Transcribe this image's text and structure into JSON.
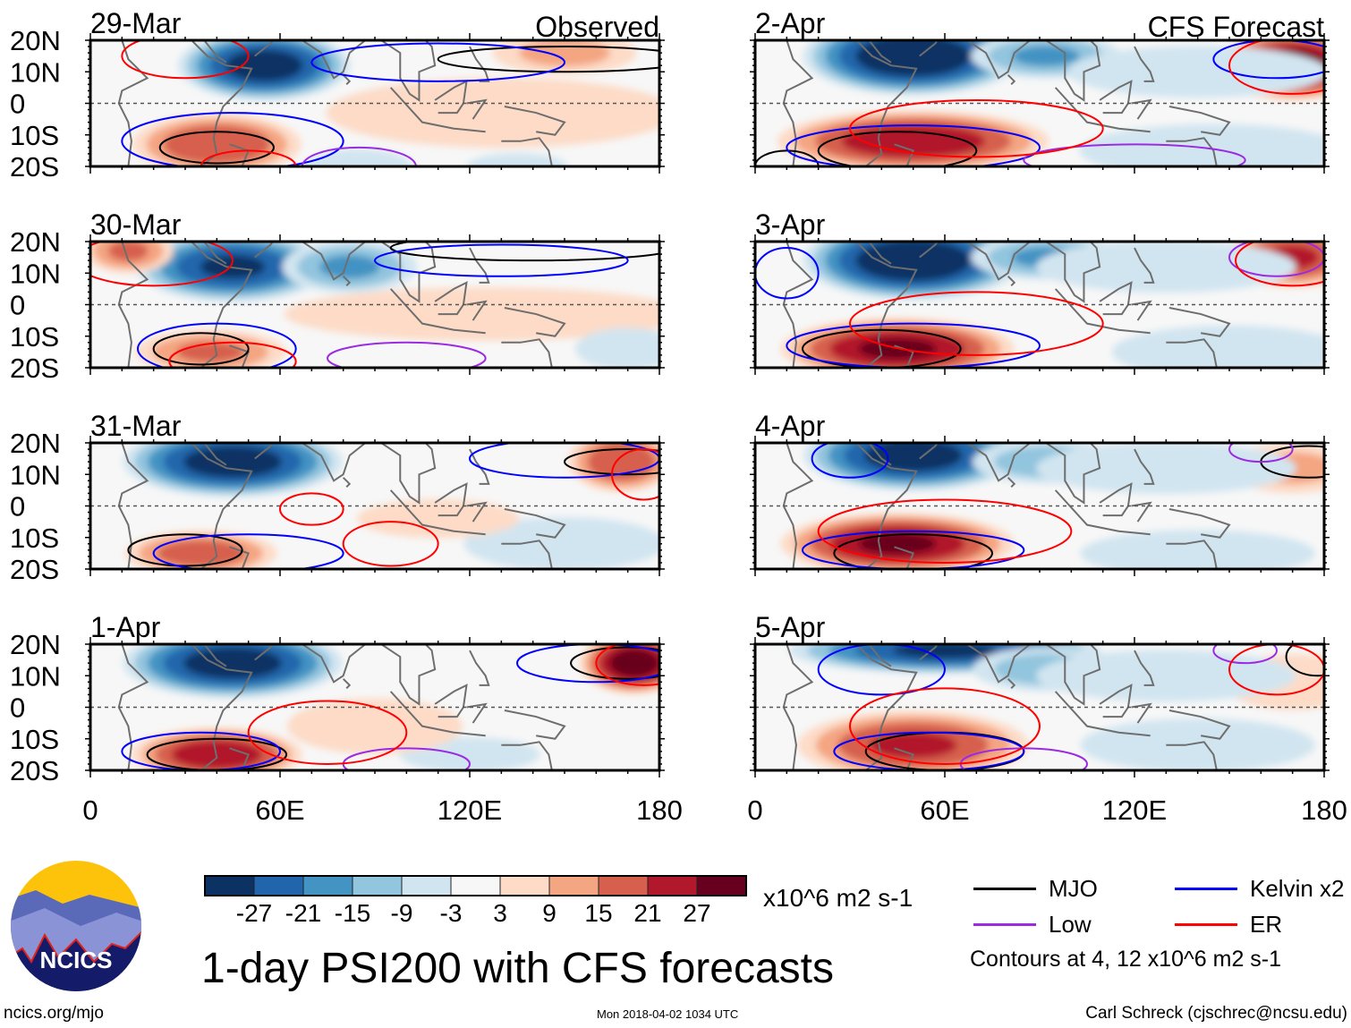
{
  "chart_data": {
    "type": "heatmap",
    "title": "1-day PSI200 with CFS forecasts",
    "units": "x10^6 m2 s-1",
    "xlim": [
      0,
      180
    ],
    "ylim": [
      -20,
      20
    ],
    "x_ticks": [
      "0",
      "60E",
      "120E",
      "180"
    ],
    "x_tick_values": [
      0,
      60,
      120,
      180
    ],
    "y_ticks": [
      "20N",
      "10N",
      "0",
      "10S",
      "20S"
    ],
    "y_tick_values": [
      20,
      10,
      0,
      -10,
      -20
    ],
    "column_labels": [
      "Observed",
      "CFS Forecast"
    ],
    "colorbar": {
      "labels": [
        "-27",
        "-21",
        "-15",
        "-9",
        "-3",
        "3",
        "9",
        "15",
        "21",
        "27"
      ],
      "colors": [
        "#0b3263",
        "#2166ac",
        "#4393c3",
        "#92c5de",
        "#d1e5f0",
        "#f7f7f7",
        "#fddbc7",
        "#f4a582",
        "#d6604d",
        "#b2182b",
        "#67001f"
      ]
    },
    "legend": [
      {
        "label": "MJO",
        "color": "#000000"
      },
      {
        "label": "Kelvin x2",
        "color": "#0000ff"
      },
      {
        "label": "Low",
        "color": "#9a2be2"
      },
      {
        "label": "ER",
        "color": "#ff0000"
      }
    ],
    "contour_note": "Contours at 4, 12 x10^6 m2 s-1",
    "panels": [
      {
        "date": "29-Mar",
        "column": 0,
        "row": 0,
        "anomalies": [
          [
            55,
            12,
            -30,
            22,
            9
          ],
          [
            40,
            -13,
            20,
            22,
            8
          ],
          [
            130,
            -3,
            8,
            50,
            10
          ],
          [
            150,
            16,
            10,
            20,
            6
          ],
          [
            85,
            -20,
            -8,
            15,
            5
          ],
          [
            135,
            -20,
            -6,
            15,
            4
          ]
        ],
        "contours": [
          [
            "MJO",
            40,
            -14,
            18,
            5
          ],
          [
            "MJO",
            150,
            14,
            40,
            4
          ],
          [
            "Kelvin",
            45,
            -12,
            35,
            9
          ],
          [
            "Kelvin",
            110,
            13,
            40,
            6
          ],
          [
            "Low",
            85,
            -20,
            18,
            6
          ],
          [
            "ER",
            30,
            15,
            20,
            7
          ],
          [
            "ER",
            50,
            -20,
            15,
            5
          ]
        ]
      },
      {
        "date": "30-Mar",
        "column": 0,
        "row": 1,
        "anomalies": [
          [
            45,
            12,
            -27,
            25,
            9
          ],
          [
            82,
            12,
            -15,
            18,
            7
          ],
          [
            12,
            17,
            15,
            12,
            6
          ],
          [
            38,
            -15,
            15,
            20,
            6
          ],
          [
            125,
            -3,
            6,
            60,
            8
          ],
          [
            170,
            -14,
            -8,
            15,
            6
          ]
        ],
        "contours": [
          [
            "MJO",
            35,
            -14,
            15,
            5
          ],
          [
            "MJO",
            140,
            18,
            45,
            4
          ],
          [
            "Kelvin",
            40,
            -14,
            25,
            8
          ],
          [
            "Kelvin",
            130,
            14,
            40,
            5
          ],
          [
            "Low",
            100,
            -17,
            25,
            5
          ],
          [
            "ER",
            45,
            -18,
            20,
            6
          ],
          [
            "ER",
            20,
            14,
            25,
            8
          ]
        ]
      },
      {
        "date": "31-Mar",
        "column": 0,
        "row": 2,
        "anomalies": [
          [
            45,
            14,
            -30,
            28,
            9
          ],
          [
            168,
            14,
            20,
            14,
            8
          ],
          [
            35,
            -15,
            18,
            20,
            6
          ],
          [
            150,
            -12,
            -6,
            30,
            8
          ],
          [
            110,
            -4,
            5,
            25,
            6
          ]
        ],
        "contours": [
          [
            "MJO",
            30,
            -14,
            18,
            5
          ],
          [
            "MJO",
            170,
            14,
            20,
            4
          ],
          [
            "Kelvin",
            50,
            -15,
            30,
            6
          ],
          [
            "Kelvin",
            150,
            15,
            30,
            6
          ],
          [
            "ER",
            70,
            -1,
            10,
            5
          ],
          [
            "ER",
            95,
            -12,
            15,
            7
          ],
          [
            "ER",
            175,
            10,
            10,
            8
          ]
        ]
      },
      {
        "date": "1-Apr",
        "column": 0,
        "row": 3,
        "anomalies": [
          [
            45,
            14,
            -30,
            28,
            9
          ],
          [
            172,
            14,
            30,
            14,
            8
          ],
          [
            40,
            -15,
            25,
            22,
            7
          ],
          [
            120,
            -15,
            -8,
            20,
            5
          ],
          [
            90,
            -6,
            8,
            25,
            8
          ]
        ],
        "contours": [
          [
            "MJO",
            40,
            -15,
            22,
            5
          ],
          [
            "MJO",
            170,
            14,
            18,
            5
          ],
          [
            "Kelvin",
            35,
            -14,
            25,
            6
          ],
          [
            "Kelvin",
            160,
            14,
            25,
            6
          ],
          [
            "Low",
            100,
            -18,
            20,
            5
          ],
          [
            "ER",
            75,
            -8,
            25,
            10
          ],
          [
            "ER",
            175,
            14,
            15,
            7
          ]
        ]
      },
      {
        "date": "2-Apr",
        "column": 1,
        "row": 0,
        "anomalies": [
          [
            50,
            15,
            -33,
            28,
            10
          ],
          [
            92,
            15,
            -15,
            20,
            6
          ],
          [
            170,
            12,
            30,
            20,
            9
          ],
          [
            50,
            -12,
            25,
            35,
            8
          ],
          [
            145,
            -15,
            -6,
            40,
            8
          ],
          [
            140,
            10,
            -5,
            40,
            8
          ]
        ],
        "contours": [
          [
            "MJO",
            45,
            -15,
            25,
            6
          ],
          [
            "MJO",
            10,
            -20,
            10,
            5
          ],
          [
            "Kelvin",
            50,
            -14,
            40,
            7
          ],
          [
            "Kelvin",
            165,
            14,
            20,
            6
          ],
          [
            "Low",
            120,
            -18,
            35,
            5
          ],
          [
            "ER",
            70,
            -8,
            40,
            9
          ],
          [
            "ER",
            170,
            12,
            20,
            9
          ]
        ]
      },
      {
        "date": "3-Apr",
        "column": 1,
        "row": 1,
        "anomalies": [
          [
            50,
            14,
            -33,
            28,
            10
          ],
          [
            92,
            15,
            -15,
            20,
            6
          ],
          [
            170,
            15,
            21,
            18,
            8
          ],
          [
            45,
            -14,
            27,
            30,
            8
          ],
          [
            150,
            -15,
            -6,
            35,
            8
          ],
          [
            130,
            12,
            -5,
            40,
            8
          ]
        ],
        "contours": [
          [
            "MJO",
            40,
            -14,
            25,
            6
          ],
          [
            "Kelvin",
            50,
            -13,
            40,
            7
          ],
          [
            "Kelvin",
            10,
            10,
            10,
            8
          ],
          [
            "Low",
            165,
            15,
            15,
            6
          ],
          [
            "ER",
            70,
            -6,
            40,
            10
          ],
          [
            "ER",
            170,
            14,
            18,
            8
          ]
        ]
      },
      {
        "date": "4-Apr",
        "column": 1,
        "row": 2,
        "anomalies": [
          [
            50,
            16,
            -30,
            28,
            9
          ],
          [
            92,
            14,
            -12,
            20,
            6
          ],
          [
            45,
            -12,
            27,
            30,
            8
          ],
          [
            170,
            12,
            10,
            18,
            7
          ],
          [
            140,
            -15,
            -6,
            35,
            7
          ],
          [
            130,
            12,
            -5,
            40,
            8
          ]
        ],
        "contours": [
          [
            "MJO",
            50,
            -15,
            25,
            6
          ],
          [
            "MJO",
            175,
            14,
            15,
            5
          ],
          [
            "Kelvin",
            50,
            -14,
            35,
            6
          ],
          [
            "Kelvin",
            30,
            15,
            12,
            6
          ],
          [
            "Low",
            160,
            18,
            10,
            4
          ],
          [
            "ER",
            60,
            -8,
            40,
            10
          ]
        ]
      },
      {
        "date": "5-Apr",
        "column": 1,
        "row": 3,
        "anomalies": [
          [
            60,
            18,
            -27,
            40,
            6
          ],
          [
            92,
            12,
            -12,
            20,
            6
          ],
          [
            50,
            -12,
            21,
            30,
            9
          ],
          [
            170,
            8,
            8,
            20,
            8
          ],
          [
            140,
            -12,
            -6,
            35,
            8
          ],
          [
            130,
            10,
            -5,
            40,
            8
          ]
        ],
        "contours": [
          [
            "MJO",
            60,
            -14,
            25,
            6
          ],
          [
            "MJO",
            178,
            16,
            10,
            6
          ],
          [
            "Kelvin",
            40,
            12,
            20,
            8
          ],
          [
            "Kelvin",
            55,
            -14,
            30,
            6
          ],
          [
            "Low",
            85,
            -18,
            20,
            5
          ],
          [
            "Low",
            155,
            18,
            10,
            4
          ],
          [
            "ER",
            60,
            -6,
            30,
            12
          ],
          [
            "ER",
            165,
            12,
            15,
            8
          ]
        ]
      }
    ]
  },
  "footer": {
    "logo_text": "NCICS",
    "website": "ncics.org/mjo",
    "timestamp": "Mon 2018-04-02 1034 UTC",
    "author": "Carl Schreck (cjschrec@ncsu.edu)"
  }
}
